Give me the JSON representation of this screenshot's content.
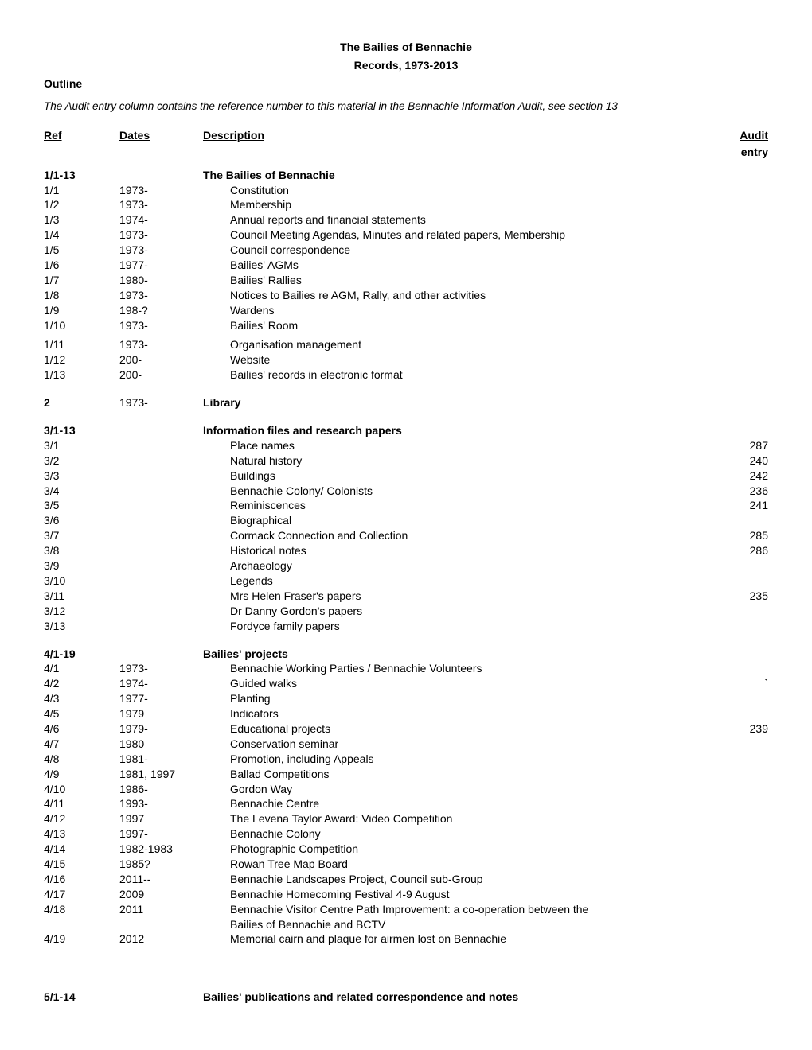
{
  "doc": {
    "title1": "The Bailies of Bennachie",
    "title2": "Records, 1973-2013",
    "outline": "Outline",
    "audit_note": "The Audit entry column contains the reference number to this material in the Bennachie Information Audit, see section 13",
    "hdr_ref": "Ref",
    "hdr_dates": "Dates",
    "hdr_desc": "Description",
    "hdr_audit": "Audit",
    "hdr_entry": "entry"
  },
  "s1": {
    "head_ref": "1/1-13",
    "head_desc": "The Bailies of Bennachie",
    "rows": [
      {
        "ref": "1/1",
        "dates": "1973-",
        "desc": "Constitution"
      },
      {
        "ref": "1/2",
        "dates": "1973-",
        "desc": "Membership"
      },
      {
        "ref": "1/3",
        "dates": "1974-",
        "desc": "Annual reports and financial statements"
      },
      {
        "ref": "1/4",
        "dates": "1973-",
        "desc": "Council Meeting Agendas, Minutes and related papers, Membership"
      },
      {
        "ref": "1/5",
        "dates": "1973-",
        "desc": "Council correspondence"
      },
      {
        "ref": "1/6",
        "dates": "1977-",
        "desc": "Bailies' AGMs"
      },
      {
        "ref": "1/7",
        "dates": "1980-",
        "desc": "Bailies' Rallies"
      },
      {
        "ref": "1/8",
        "dates": "1973-",
        "desc": "Notices to Bailies re AGM, Rally, and other activities"
      },
      {
        "ref": "1/9",
        "dates": "198-?",
        "desc": "Wardens"
      },
      {
        "ref": "1/10",
        "dates": "1973-",
        "desc": "Bailies' Room"
      },
      {
        "ref": "1/11",
        "dates": "1973-",
        "desc": "Organisation management"
      },
      {
        "ref": "1/12",
        "dates": "200-",
        "desc": "Website"
      },
      {
        "ref": "1/13",
        "dates": "200-",
        "desc": "Bailies' records in electronic format"
      }
    ]
  },
  "s2": {
    "ref": "2",
    "dates": "1973-",
    "desc": "Library"
  },
  "s3": {
    "head_ref": "3/1-13",
    "head_desc": "Information files and research papers",
    "rows": [
      {
        "ref": "3/1",
        "desc": "Place names",
        "audit": "287"
      },
      {
        "ref": "3/2",
        "desc": "Natural history",
        "audit": "240"
      },
      {
        "ref": "3/3",
        "desc": "Buildings",
        "audit": "242"
      },
      {
        "ref": "3/4",
        "desc": "Bennachie Colony/ Colonists",
        "audit": "236"
      },
      {
        "ref": "3/5",
        "desc": "Reminiscences",
        "audit": "241"
      },
      {
        "ref": "3/6",
        "desc": "Biographical",
        "audit": ""
      },
      {
        "ref": "3/7",
        "desc": "Cormack Connection and Collection",
        "audit": "285"
      },
      {
        "ref": "3/8",
        "desc": "Historical notes",
        "audit": "286"
      },
      {
        "ref": "3/9",
        "desc": "Archaeology",
        "audit": ""
      },
      {
        "ref": "3/10",
        "desc": "Legends",
        "audit": ""
      },
      {
        "ref": "3/11",
        "desc": "Mrs Helen Fraser's papers",
        "audit": "235"
      },
      {
        "ref": "3/12",
        "desc": "Dr Danny Gordon's papers",
        "audit": ""
      },
      {
        "ref": "3/13",
        "desc": "Fordyce family papers",
        "audit": ""
      }
    ]
  },
  "s4": {
    "head_ref": "4/1-19",
    "head_desc": "Bailies' projects",
    "rows": [
      {
        "ref": "4/1",
        "dates": "1973-",
        "desc": "Bennachie Working Parties / Bennachie Volunteers",
        "audit": ""
      },
      {
        "ref": "4/2",
        "dates": "1974-",
        "desc": "Guided walks",
        "audit": "`"
      },
      {
        "ref": "4/3",
        "dates": "1977-",
        "desc": "Planting",
        "audit": ""
      },
      {
        "ref": "4/5",
        "dates": "1979",
        "desc": "Indicators",
        "audit": ""
      },
      {
        "ref": "4/6",
        "dates": "1979-",
        "desc": "Educational projects",
        "audit": "239"
      },
      {
        "ref": "4/7",
        "dates": "1980",
        "desc": "Conservation seminar",
        "audit": ""
      },
      {
        "ref": "4/8",
        "dates": "1981-",
        "desc": "Promotion, including Appeals",
        "audit": ""
      },
      {
        "ref": "4/9",
        "dates": "1981, 1997",
        "desc": "Ballad Competitions",
        "audit": ""
      },
      {
        "ref": "4/10",
        "dates": "1986-",
        "desc": "Gordon Way",
        "audit": ""
      },
      {
        "ref": "4/11",
        "dates": "1993-",
        "desc": "Bennachie Centre",
        "audit": ""
      },
      {
        "ref": "4/12",
        "dates": "1997",
        "desc": "The Levena Taylor Award: Video Competition",
        "audit": ""
      },
      {
        "ref": "4/13",
        "dates": "1997-",
        "desc": "Bennachie Colony",
        "audit": ""
      },
      {
        "ref": "4/14",
        "dates": "1982-1983",
        "desc": "Photographic Competition",
        "audit": ""
      },
      {
        "ref": "4/15",
        "dates": "1985?",
        "desc": "Rowan Tree Map Board",
        "audit": ""
      },
      {
        "ref": "4/16",
        "dates": "2011--",
        "desc": "Bennachie Landscapes Project, Council  sub-Group",
        "audit": ""
      },
      {
        "ref": "4/17",
        "dates": "2009",
        "desc": "Bennachie Homecoming Festival 4-9 August",
        "audit": ""
      },
      {
        "ref": "4/18",
        "dates": "2011",
        "desc": "Bennachie Visitor Centre Path Improvement: a co-operation between the",
        "audit": ""
      }
    ],
    "wrap418": "Bailies    of Bennachie and BCTV",
    "row419": {
      "ref": "4/19",
      "dates": "2012",
      "desc": "Memorial cairn and plaque for airmen lost on Bennachie"
    }
  },
  "s5": {
    "ref": "5/1-14",
    "desc": "Bailies' publications    and related correspondence and notes"
  }
}
